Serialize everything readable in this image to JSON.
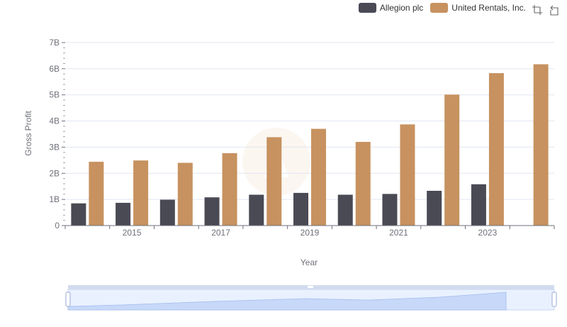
{
  "legend": {
    "items": [
      {
        "name": "Allegion plc",
        "color": "#4a4a55"
      },
      {
        "name": "United Rentals, Inc.",
        "color": "#c79260"
      }
    ]
  },
  "toolbox": {
    "icons": [
      "zoom-icon",
      "restore-icon"
    ]
  },
  "chart_data": {
    "type": "bar",
    "xlabel": "Year",
    "ylabel": "Gross Profit",
    "ylim": [
      0,
      7000000000
    ],
    "ytick_labels": [
      "0",
      "1B",
      "2B",
      "3B",
      "4B",
      "5B",
      "6B",
      "7B"
    ],
    "categories": [
      "2014",
      "2015",
      "2016",
      "2017",
      "2018",
      "2019",
      "2020",
      "2021",
      "2022",
      "2023",
      "2024"
    ],
    "xtick_labels": [
      "2015",
      "2017",
      "2019",
      "2021",
      "2023"
    ],
    "series": [
      {
        "name": "Allegion plc",
        "color": "#4a4a55",
        "values": [
          850000000,
          870000000,
          990000000,
          1080000000,
          1180000000,
          1250000000,
          1180000000,
          1210000000,
          1330000000,
          1580000000,
          null
        ]
      },
      {
        "name": "United Rentals, Inc.",
        "color": "#c79260",
        "values": [
          2440000000,
          2490000000,
          2400000000,
          2770000000,
          3380000000,
          3700000000,
          3200000000,
          3870000000,
          5010000000,
          5830000000,
          6170000000
        ]
      }
    ],
    "grid": true
  }
}
